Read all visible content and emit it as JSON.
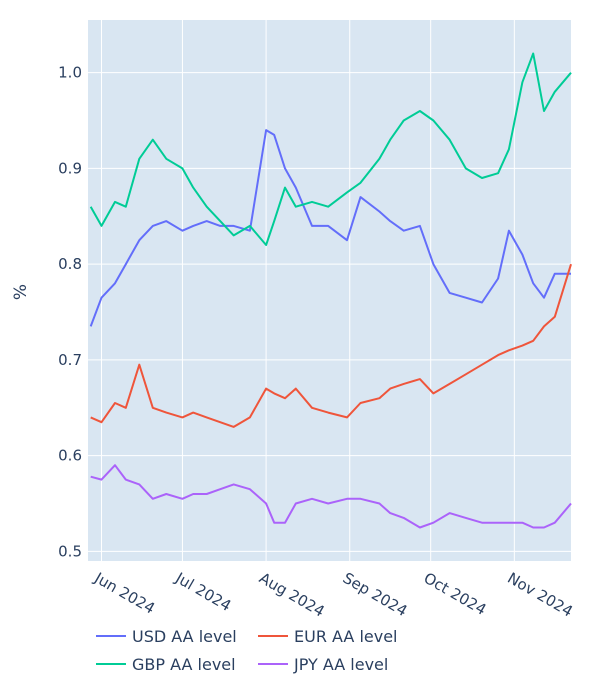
{
  "chart_data": {
    "type": "line",
    "title": "",
    "xlabel": "",
    "ylabel": "%",
    "ylim": [
      0.49,
      1.055
    ],
    "xlim": [
      "2024-05-27",
      "2024-11-22"
    ],
    "grid": true,
    "legend_position": "bottom",
    "xticks": [
      {
        "date": "2024-06-01",
        "label": "Jun 2024"
      },
      {
        "date": "2024-07-01",
        "label": "Jul 2024"
      },
      {
        "date": "2024-08-01",
        "label": "Aug 2024"
      },
      {
        "date": "2024-09-01",
        "label": "Sep 2024"
      },
      {
        "date": "2024-10-01",
        "label": "Oct 2024"
      },
      {
        "date": "2024-11-01",
        "label": "Nov 2024"
      }
    ],
    "yticks": [
      0.5,
      0.6,
      0.7,
      0.8,
      0.9,
      1.0
    ],
    "ytick_labels": [
      "0.5",
      "0.6",
      "0.7",
      "0.8",
      "0.9",
      "1.0"
    ],
    "series": [
      {
        "name": "USD AA level",
        "color": "#636efa",
        "x": [
          "2024-05-28",
          "2024-06-01",
          "2024-06-06",
          "2024-06-10",
          "2024-06-15",
          "2024-06-20",
          "2024-06-25",
          "2024-07-01",
          "2024-07-05",
          "2024-07-10",
          "2024-07-15",
          "2024-07-20",
          "2024-07-26",
          "2024-08-01",
          "2024-08-04",
          "2024-08-08",
          "2024-08-12",
          "2024-08-18",
          "2024-08-24",
          "2024-08-31",
          "2024-09-05",
          "2024-09-12",
          "2024-09-16",
          "2024-09-21",
          "2024-09-27",
          "2024-10-02",
          "2024-10-08",
          "2024-10-14",
          "2024-10-20",
          "2024-10-26",
          "2024-10-30",
          "2024-11-04",
          "2024-11-08",
          "2024-11-12",
          "2024-11-16",
          "2024-11-22"
        ],
        "values": [
          0.735,
          0.765,
          0.78,
          0.8,
          0.825,
          0.84,
          0.845,
          0.835,
          0.84,
          0.845,
          0.84,
          0.84,
          0.835,
          0.94,
          0.935,
          0.9,
          0.88,
          0.84,
          0.84,
          0.825,
          0.87,
          0.855,
          0.845,
          0.835,
          0.84,
          0.8,
          0.77,
          0.765,
          0.76,
          0.785,
          0.835,
          0.81,
          0.78,
          0.765,
          0.79,
          0.79
        ]
      },
      {
        "name": "EUR AA level",
        "color": "#ef553b",
        "x": [
          "2024-05-28",
          "2024-06-01",
          "2024-06-06",
          "2024-06-10",
          "2024-06-15",
          "2024-06-20",
          "2024-06-25",
          "2024-07-01",
          "2024-07-05",
          "2024-07-10",
          "2024-07-15",
          "2024-07-20",
          "2024-07-26",
          "2024-08-01",
          "2024-08-04",
          "2024-08-08",
          "2024-08-12",
          "2024-08-18",
          "2024-08-24",
          "2024-08-31",
          "2024-09-05",
          "2024-09-12",
          "2024-09-16",
          "2024-09-21",
          "2024-09-27",
          "2024-10-02",
          "2024-10-08",
          "2024-10-14",
          "2024-10-20",
          "2024-10-26",
          "2024-10-30",
          "2024-11-04",
          "2024-11-08",
          "2024-11-12",
          "2024-11-16",
          "2024-11-22"
        ],
        "values": [
          0.64,
          0.635,
          0.655,
          0.65,
          0.695,
          0.65,
          0.645,
          0.64,
          0.645,
          0.64,
          0.635,
          0.63,
          0.64,
          0.67,
          0.665,
          0.66,
          0.67,
          0.65,
          0.645,
          0.64,
          0.655,
          0.66,
          0.67,
          0.675,
          0.68,
          0.665,
          0.675,
          0.685,
          0.695,
          0.705,
          0.71,
          0.715,
          0.72,
          0.735,
          0.745,
          0.8
        ]
      },
      {
        "name": "GBP AA level",
        "color": "#00cc96",
        "x": [
          "2024-05-28",
          "2024-06-01",
          "2024-06-06",
          "2024-06-10",
          "2024-06-15",
          "2024-06-20",
          "2024-06-25",
          "2024-07-01",
          "2024-07-05",
          "2024-07-10",
          "2024-07-15",
          "2024-07-20",
          "2024-07-26",
          "2024-08-01",
          "2024-08-04",
          "2024-08-08",
          "2024-08-12",
          "2024-08-18",
          "2024-08-24",
          "2024-08-31",
          "2024-09-05",
          "2024-09-12",
          "2024-09-16",
          "2024-09-21",
          "2024-09-27",
          "2024-10-02",
          "2024-10-08",
          "2024-10-14",
          "2024-10-20",
          "2024-10-26",
          "2024-10-30",
          "2024-11-04",
          "2024-11-08",
          "2024-11-12",
          "2024-11-16",
          "2024-11-22"
        ],
        "values": [
          0.86,
          0.84,
          0.865,
          0.86,
          0.91,
          0.93,
          0.91,
          0.9,
          0.88,
          0.86,
          0.845,
          0.83,
          0.84,
          0.82,
          0.845,
          0.88,
          0.86,
          0.865,
          0.86,
          0.875,
          0.885,
          0.91,
          0.93,
          0.95,
          0.96,
          0.95,
          0.93,
          0.9,
          0.89,
          0.895,
          0.92,
          0.99,
          1.02,
          0.96,
          0.98,
          1.0
        ]
      },
      {
        "name": "JPY AA level",
        "color": "#ab63fa",
        "x": [
          "2024-05-28",
          "2024-06-01",
          "2024-06-06",
          "2024-06-10",
          "2024-06-15",
          "2024-06-20",
          "2024-06-25",
          "2024-07-01",
          "2024-07-05",
          "2024-07-10",
          "2024-07-15",
          "2024-07-20",
          "2024-07-26",
          "2024-08-01",
          "2024-08-04",
          "2024-08-08",
          "2024-08-12",
          "2024-08-18",
          "2024-08-24",
          "2024-08-31",
          "2024-09-05",
          "2024-09-12",
          "2024-09-16",
          "2024-09-21",
          "2024-09-27",
          "2024-10-02",
          "2024-10-08",
          "2024-10-14",
          "2024-10-20",
          "2024-10-26",
          "2024-10-30",
          "2024-11-04",
          "2024-11-08",
          "2024-11-12",
          "2024-11-16",
          "2024-11-22"
        ],
        "values": [
          0.578,
          0.575,
          0.59,
          0.575,
          0.57,
          0.555,
          0.56,
          0.555,
          0.56,
          0.56,
          0.565,
          0.57,
          0.565,
          0.55,
          0.53,
          0.53,
          0.55,
          0.555,
          0.55,
          0.555,
          0.555,
          0.55,
          0.54,
          0.535,
          0.525,
          0.53,
          0.54,
          0.535,
          0.53,
          0.53,
          0.53,
          0.53,
          0.525,
          0.525,
          0.53,
          0.55
        ]
      }
    ]
  }
}
